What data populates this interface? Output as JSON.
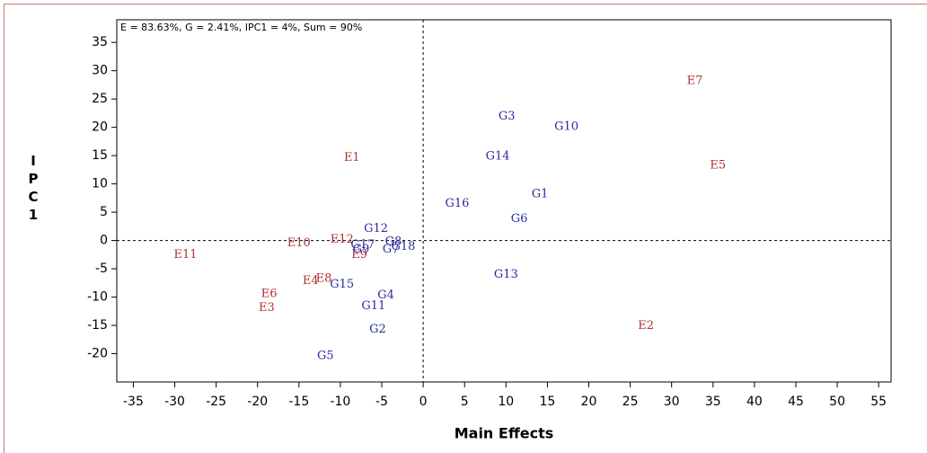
{
  "chart_data": {
    "type": "scatter",
    "annotation": "E = 83.63%, G = 2.41%, IPC1 = 4%, Sum = 90%",
    "x_label": "Main Effects",
    "y_label": "IPC1",
    "xlim": [
      -37,
      56.5
    ],
    "ylim": [
      -25,
      39
    ],
    "xticks": [
      -35,
      -30,
      -25,
      -20,
      -15,
      -10,
      -5,
      0,
      5,
      10,
      15,
      20,
      25,
      30,
      35,
      40,
      45,
      50,
      55
    ],
    "yticks": [
      -20,
      -15,
      -10,
      -5,
      0,
      5,
      10,
      15,
      20,
      25,
      30,
      35
    ],
    "reference_lines": true,
    "series": [
      {
        "color": "#b03030",
        "labels": [
          "E1",
          "E2",
          "E3",
          "E4",
          "E5",
          "E6",
          "E7",
          "E8",
          "E9",
          "E10",
          "E11",
          "E12"
        ],
        "x": [
          -8.6,
          26.9,
          -18.9,
          -13.6,
          35.6,
          -18.6,
          32.8,
          -12.0,
          -7.7,
          -15.0,
          -28.7,
          -9.8
        ],
        "values": [
          14.6,
          -15.1,
          -11.9,
          -7.1,
          13.3,
          -9.4,
          28.2,
          -6.7,
          -2.5,
          -0.5,
          -2.5,
          0.2
        ]
      },
      {
        "color": "#2a2aa0",
        "labels": [
          "G1",
          "G2",
          "G3",
          "G4",
          "G5",
          "G6",
          "G7",
          "G8",
          "G9",
          "G10",
          "G11",
          "G12",
          "G13",
          "G14",
          "G15",
          "G16",
          "G17",
          "G18"
        ],
        "x": [
          14.1,
          -5.5,
          10.1,
          -4.5,
          -11.8,
          11.6,
          -3.9,
          -3.6,
          -7.5,
          17.3,
          -6.0,
          -5.7,
          10.0,
          9.0,
          -9.8,
          4.1,
          -7.3,
          -2.4
        ],
        "values": [
          8.2,
          -15.7,
          21.9,
          -9.7,
          -20.4,
          3.8,
          -1.6,
          -0.2,
          -1.6,
          20.1,
          -11.6,
          2.1,
          -6.0,
          14.9,
          -7.8,
          6.5,
          -0.8,
          -1.1
        ]
      }
    ]
  }
}
